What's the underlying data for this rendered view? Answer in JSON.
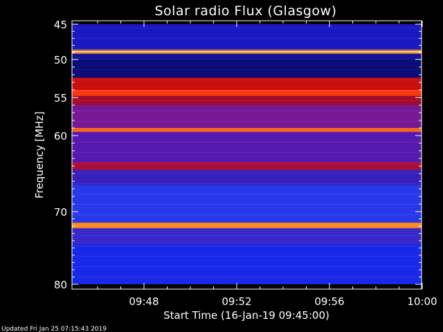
{
  "chart_data": {
    "type": "heatmap",
    "title": "Solar radio Flux (Glasgow)",
    "xlabel": "Start Time (16-Jan-19 09:45:00)",
    "ylabel": "Frequency [MHz]",
    "x_range_minutes": [
      0,
      15
    ],
    "x_ticks": [
      {
        "minute": 3,
        "label": "09:48"
      },
      {
        "minute": 7,
        "label": "09:52"
      },
      {
        "minute": 11,
        "label": "09:56"
      },
      {
        "minute": 15,
        "label": "10:00"
      }
    ],
    "y_range_mhz": [
      45,
      80
    ],
    "y_ticks": [
      {
        "mhz": 45,
        "label": "45"
      },
      {
        "mhz": 50,
        "label": "50"
      },
      {
        "mhz": 55,
        "label": "55"
      },
      {
        "mhz": 60,
        "label": "60"
      },
      {
        "mhz": 70,
        "label": "70"
      },
      {
        "mhz": 80,
        "label": "80"
      }
    ],
    "bands_mhz": [
      {
        "from": 45.0,
        "to": 48.6,
        "color": "#1a1ac8"
      },
      {
        "from": 48.6,
        "to": 48.8,
        "color": "#ff7a1a"
      },
      {
        "from": 48.8,
        "to": 49.0,
        "color": "#fff0d0"
      },
      {
        "from": 49.0,
        "to": 49.2,
        "color": "#ff8a2a"
      },
      {
        "from": 49.2,
        "to": 50.0,
        "color": "#14149a"
      },
      {
        "from": 50.0,
        "to": 52.4,
        "color": "#0c0c7c"
      },
      {
        "from": 52.4,
        "to": 54.0,
        "color": "#d01010"
      },
      {
        "from": 54.0,
        "to": 54.8,
        "color": "#ff3a14"
      },
      {
        "from": 54.8,
        "to": 56.0,
        "color": "#a80c30"
      },
      {
        "from": 56.0,
        "to": 59.0,
        "color": "#7a1a9a"
      },
      {
        "from": 59.0,
        "to": 59.5,
        "color": "#ff6a1a"
      },
      {
        "from": 59.5,
        "to": 63.5,
        "color": "#5a1ab4"
      },
      {
        "from": 63.5,
        "to": 64.5,
        "color": "#b0103a"
      },
      {
        "from": 64.5,
        "to": 66.5,
        "color": "#3a22c0"
      },
      {
        "from": 66.5,
        "to": 71.5,
        "color": "#2a3af0"
      },
      {
        "from": 71.5,
        "to": 72.3,
        "color": "#ff8a2a"
      },
      {
        "from": 72.3,
        "to": 74.5,
        "color": "#3a2ad0"
      },
      {
        "from": 74.5,
        "to": 80.0,
        "color": "#1a2af0"
      }
    ],
    "colors": {
      "background": "#000000",
      "axes": "#ffffff"
    }
  },
  "footer": {
    "updated": "Updated Fri Jan 25 07:15:43 2019"
  }
}
